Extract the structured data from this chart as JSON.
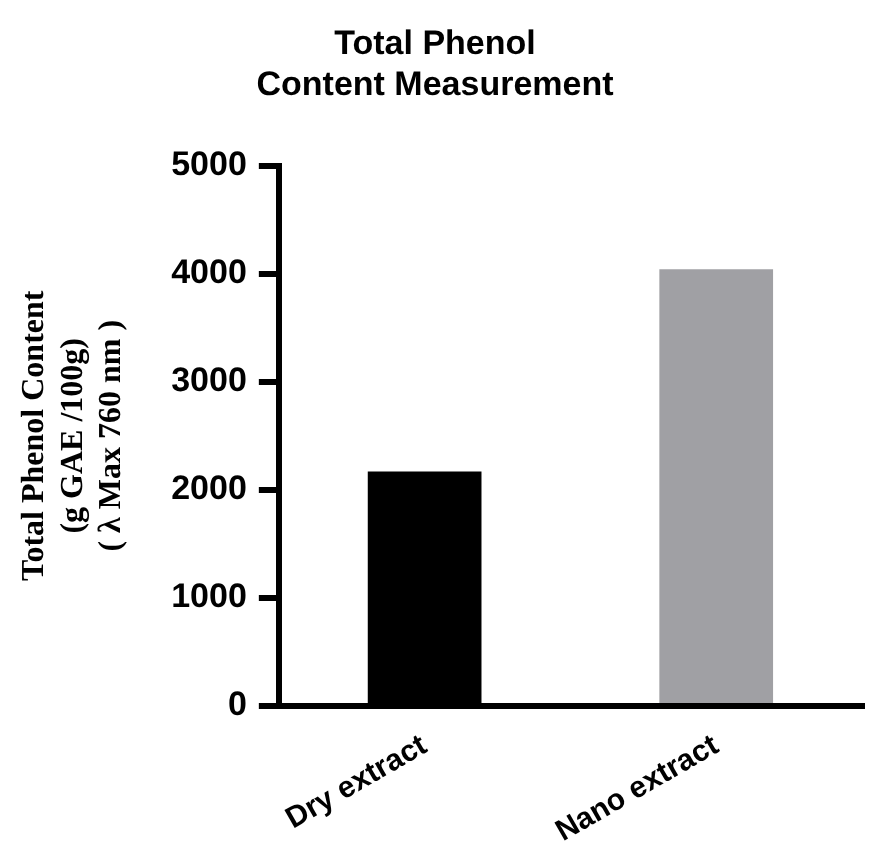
{
  "chart_data": {
    "type": "bar",
    "title": "Total Phenol\nContent Measurement",
    "ylabel": "Total Phenol Content\n(g GAE /100g)\n( λ Max 760 nm )",
    "categories": [
      "Dry extract",
      "Nano extract"
    ],
    "values": [
      2170,
      4040
    ],
    "colors": [
      "#000000",
      "#a0a0a4"
    ],
    "ylim": [
      0,
      5000
    ],
    "yticks": [
      0,
      1000,
      2000,
      3000,
      4000,
      5000
    ],
    "grid": false,
    "legend": false
  }
}
